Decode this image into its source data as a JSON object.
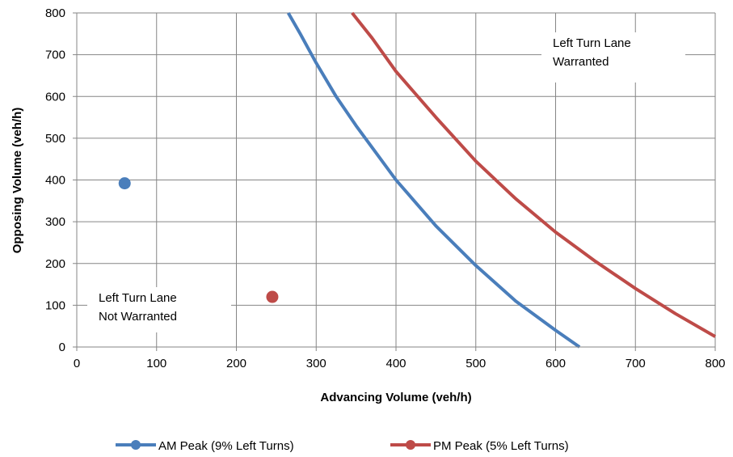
{
  "chart_data": {
    "type": "line",
    "title": "",
    "xlabel": "Advancing Volume (veh/h)",
    "ylabel": "Opposing Volume (veh/h)",
    "xlim": [
      0,
      800
    ],
    "ylim": [
      0,
      800
    ],
    "x_ticks": [
      0,
      100,
      200,
      300,
      400,
      500,
      600,
      700,
      800
    ],
    "y_ticks": [
      0,
      100,
      200,
      300,
      400,
      500,
      600,
      700,
      800
    ],
    "grid": true,
    "legend_position": "bottom",
    "series": [
      {
        "name": "AM Peak (9% Left Turns)",
        "color": "#4a7ebb",
        "line": [
          {
            "x": 265,
            "y": 800
          },
          {
            "x": 280,
            "y": 750
          },
          {
            "x": 300,
            "y": 680
          },
          {
            "x": 325,
            "y": 600
          },
          {
            "x": 350,
            "y": 530
          },
          {
            "x": 375,
            "y": 465
          },
          {
            "x": 400,
            "y": 400
          },
          {
            "x": 450,
            "y": 290
          },
          {
            "x": 500,
            "y": 195
          },
          {
            "x": 550,
            "y": 110
          },
          {
            "x": 600,
            "y": 40
          },
          {
            "x": 630,
            "y": 0
          }
        ],
        "point": {
          "x": 60,
          "y": 392
        }
      },
      {
        "name": "PM Peak (5% Left Turns)",
        "color": "#be4b48",
        "line": [
          {
            "x": 345,
            "y": 800
          },
          {
            "x": 370,
            "y": 740
          },
          {
            "x": 400,
            "y": 660
          },
          {
            "x": 450,
            "y": 550
          },
          {
            "x": 500,
            "y": 445
          },
          {
            "x": 550,
            "y": 355
          },
          {
            "x": 600,
            "y": 275
          },
          {
            "x": 650,
            "y": 205
          },
          {
            "x": 700,
            "y": 140
          },
          {
            "x": 750,
            "y": 80
          },
          {
            "x": 800,
            "y": 25
          }
        ],
        "point": {
          "x": 245,
          "y": 120
        }
      }
    ],
    "annotations": [
      {
        "id": "warranted",
        "lines": [
          "Left Turn Lane",
          "Warranted"
        ]
      },
      {
        "id": "not-warranted",
        "lines": [
          "Left Turn Lane",
          "Not Warranted"
        ]
      }
    ]
  }
}
